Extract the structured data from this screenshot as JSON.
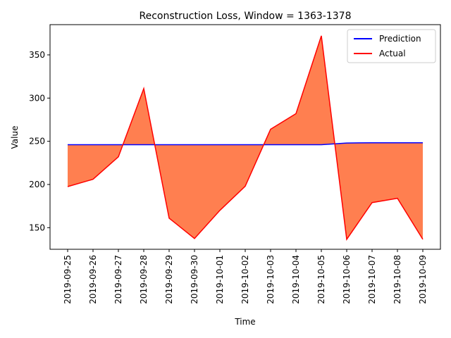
{
  "chart_data": {
    "type": "line",
    "title": "Reconstruction Loss, Window = 1363-1378",
    "xlabel": "Time",
    "ylabel": "Value",
    "categories": [
      "2019-09-25",
      "2019-09-26",
      "2019-09-27",
      "2019-09-28",
      "2019-09-29",
      "2019-09-30",
      "2019-10-01",
      "2019-10-02",
      "2019-10-03",
      "2019-10-04",
      "2019-10-05",
      "2019-10-06",
      "2019-10-07",
      "2019-10-08",
      "2019-10-09"
    ],
    "ylim": [
      125,
      385
    ],
    "yticks": [
      150,
      200,
      250,
      300,
      350
    ],
    "series": [
      {
        "name": "Prediction",
        "color": "#0000ff",
        "values": [
          246,
          246,
          246,
          246,
          246,
          246,
          246,
          246,
          246,
          246,
          246,
          248,
          248.3,
          248.3,
          248.3
        ]
      },
      {
        "name": "Actual",
        "color": "#ff0000",
        "values": [
          197.5,
          206,
          232,
          311,
          161,
          137.5,
          170,
          198,
          264,
          282,
          372,
          136.5,
          179,
          184,
          136.5
        ]
      }
    ],
    "fill_color": "#ff7f50",
    "legend_position": "top-right",
    "grid": false
  }
}
